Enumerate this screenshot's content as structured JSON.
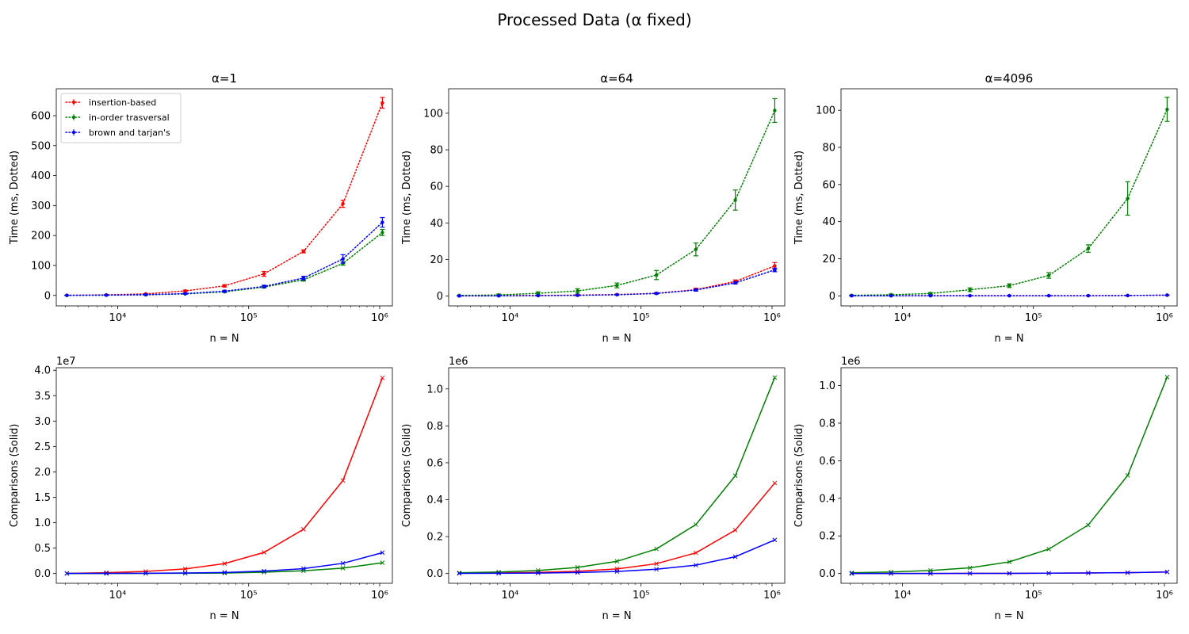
{
  "figure_title": "Processed Data (α fixed)",
  "legend": [
    "insertion-based",
    "in-order trasversal",
    "brown and tarjan's"
  ],
  "chart_data": [
    {
      "type": "line",
      "line_style": "dotted",
      "title": "α=1",
      "xlabel": "n = N",
      "ylabel": "Time (ms, Dotted)",
      "xscale": "log",
      "xlim": [
        3400,
        1250000
      ],
      "ylim": [
        -35,
        690
      ],
      "yticks": [
        0,
        100,
        200,
        300,
        400,
        500,
        600
      ],
      "ytick_labels": [
        "0",
        "100",
        "200",
        "300",
        "400",
        "500",
        "600"
      ],
      "xticks": [
        10000,
        100000,
        1000000
      ],
      "xtick_labels": [
        "10⁴",
        "10⁵",
        "10⁶"
      ],
      "offset_text": "",
      "legend_loc": "upper left",
      "x": [
        4096,
        8192,
        16384,
        32768,
        65536,
        131072,
        262144,
        524288,
        1048576
      ],
      "series": [
        {
          "name": "insertion-based",
          "color": "#ff0000",
          "values": [
            0.5,
            2,
            5,
            15,
            32,
            72,
            147,
            306,
            643
          ],
          "errors": [
            0.5,
            1,
            1.5,
            2.5,
            4,
            8,
            5,
            12,
            18
          ]
        },
        {
          "name": "in-order trasversal",
          "color": "#008000",
          "values": [
            0.3,
            0.8,
            2,
            5,
            12,
            28,
            52,
            107,
            210
          ],
          "errors": [
            0.3,
            0.5,
            0.8,
            1,
            2,
            3,
            4,
            6,
            10
          ]
        },
        {
          "name": "brown and tarjan's",
          "color": "#0000ff",
          "values": [
            0.3,
            1,
            2.5,
            6,
            14,
            30,
            58,
            122,
            244
          ],
          "errors": [
            0.3,
            0.5,
            1,
            1.5,
            3,
            4,
            6,
            14,
            16
          ]
        }
      ]
    },
    {
      "type": "line",
      "line_style": "dotted",
      "title": "α=64",
      "xlabel": "n = N",
      "ylabel": "Time (ms, Dotted)",
      "xscale": "log",
      "xlim": [
        3400,
        1250000
      ],
      "ylim": [
        -5.4,
        113.4
      ],
      "yticks": [
        0,
        20,
        40,
        60,
        80,
        100
      ],
      "ytick_labels": [
        "0",
        "20",
        "40",
        "60",
        "80",
        "100"
      ],
      "xticks": [
        10000,
        100000,
        1000000
      ],
      "xtick_labels": [
        "10⁴",
        "10⁵",
        "10⁶"
      ],
      "offset_text": "",
      "x": [
        4096,
        8192,
        16384,
        32768,
        65536,
        131072,
        262144,
        524288,
        1048576
      ],
      "series": [
        {
          "name": "insertion-based",
          "color": "#ff0000",
          "values": [
            0.1,
            0.2,
            0.3,
            0.5,
            0.8,
            1.5,
            3.5,
            8,
            16.5
          ],
          "errors": [
            0.1,
            0.1,
            0.2,
            0.3,
            0.3,
            0.4,
            0.8,
            0.8,
            1.8
          ]
        },
        {
          "name": "in-order trasversal",
          "color": "#008000",
          "values": [
            0.3,
            0.6,
            1.5,
            2.8,
            5.8,
            11.5,
            25.5,
            52.5,
            101.5
          ],
          "errors": [
            0.2,
            0.5,
            0.8,
            1.2,
            1.3,
            2.5,
            3.5,
            5.5,
            6.5
          ]
        },
        {
          "name": "brown and tarjan's",
          "color": "#0000ff",
          "values": [
            0.05,
            0.1,
            0.2,
            0.4,
            0.7,
            1.4,
            3.3,
            7.2,
            14.3
          ],
          "errors": [
            0.05,
            0.1,
            0.1,
            0.2,
            0.2,
            0.3,
            0.5,
            0.6,
            1
          ]
        }
      ]
    },
    {
      "type": "line",
      "line_style": "dotted",
      "title": "α=4096",
      "xlabel": "n = N",
      "ylabel": "Time (ms, Dotted)",
      "xscale": "log",
      "xlim": [
        3400,
        1250000
      ],
      "ylim": [
        -5.4,
        111.6
      ],
      "yticks": [
        0,
        20,
        40,
        60,
        80,
        100
      ],
      "ytick_labels": [
        "0",
        "20",
        "40",
        "60",
        "80",
        "100"
      ],
      "xticks": [
        10000,
        100000,
        1000000
      ],
      "xtick_labels": [
        "10⁴",
        "10⁵",
        "10⁶"
      ],
      "offset_text": "",
      "x": [
        4096,
        8192,
        16384,
        32768,
        65536,
        131072,
        262144,
        524288,
        1048576
      ],
      "series": [
        {
          "name": "insertion-based",
          "color": "#ff0000",
          "values": [
            0.05,
            0.05,
            0.1,
            0.1,
            0.1,
            0.1,
            0.1,
            0.2,
            0.4
          ],
          "errors": [
            0.05,
            0.05,
            0.05,
            0.05,
            0.05,
            0.05,
            0.05,
            0.05,
            0.1
          ]
        },
        {
          "name": "in-order trasversal",
          "color": "#008000",
          "values": [
            0.3,
            0.6,
            1.3,
            3.3,
            5.5,
            11,
            25.5,
            52.5,
            100.5
          ],
          "errors": [
            0.2,
            0.4,
            0.5,
            1,
            1,
            1.5,
            2,
            9,
            6.5
          ]
        },
        {
          "name": "brown and tarjan's",
          "color": "#0000ff",
          "values": [
            0.05,
            0.05,
            0.1,
            0.1,
            0.1,
            0.1,
            0.1,
            0.2,
            0.4
          ],
          "errors": [
            0.05,
            0.05,
            0.05,
            0.05,
            0.05,
            0.05,
            0.05,
            0.05,
            0.1
          ]
        }
      ]
    },
    {
      "type": "line",
      "line_style": "solid",
      "title": "",
      "xlabel": "n = N",
      "ylabel": "Comparisons (Solid)",
      "xscale": "log",
      "xlim": [
        3400,
        1250000
      ],
      "ylim": [
        -1930000,
        40500000
      ],
      "yticks": [
        0,
        5000000,
        10000000,
        15000000,
        20000000,
        25000000,
        30000000,
        35000000,
        40000000
      ],
      "ytick_labels": [
        "0.0",
        "0.5",
        "1.0",
        "1.5",
        "2.0",
        "2.5",
        "3.0",
        "3.5",
        "4.0"
      ],
      "xticks": [
        10000,
        100000,
        1000000
      ],
      "xtick_labels": [
        "10⁴",
        "10⁵",
        "10⁶"
      ],
      "offset_text": "1e7",
      "x": [
        4096,
        8192,
        16384,
        32768,
        65536,
        131072,
        262144,
        524288,
        1048576
      ],
      "series": [
        {
          "name": "insertion-based",
          "color": "#ff0000",
          "values": [
            20000,
            150000,
            400000,
            900000,
            1950000,
            4150000,
            8700000,
            18300000,
            38500000
          ]
        },
        {
          "name": "in-order trasversal",
          "color": "#008000",
          "values": [
            4000,
            8000,
            17000,
            35000,
            70000,
            260000,
            530000,
            1050000,
            2100000
          ]
        },
        {
          "name": "brown and tarjan's",
          "color": "#0000ff",
          "values": [
            10000,
            20000,
            45000,
            90000,
            200000,
            470000,
            950000,
            2000000,
            4100000
          ]
        }
      ]
    },
    {
      "type": "line",
      "line_style": "solid",
      "title": "",
      "xlabel": "n = N",
      "ylabel": "Comparisons (Solid)",
      "xscale": "log",
      "xlim": [
        3400,
        1250000
      ],
      "ylim": [
        -53000,
        1115000
      ],
      "yticks": [
        0,
        200000,
        400000,
        600000,
        800000,
        1000000
      ],
      "ytick_labels": [
        "0.0",
        "0.2",
        "0.4",
        "0.6",
        "0.8",
        "1.0"
      ],
      "xticks": [
        10000,
        100000,
        1000000
      ],
      "xtick_labels": [
        "10⁴",
        "10⁵",
        "10⁶"
      ],
      "offset_text": "1e6",
      "x": [
        4096,
        8192,
        16384,
        32768,
        65536,
        131072,
        262144,
        524288,
        1048576
      ],
      "series": [
        {
          "name": "insertion-based",
          "color": "#ff0000",
          "values": [
            1500,
            3000,
            6000,
            12000,
            25000,
            53000,
            112000,
            235000,
            490000
          ]
        },
        {
          "name": "in-order trasversal",
          "color": "#008000",
          "values": [
            4000,
            8000,
            16500,
            33000,
            66000,
            133000,
            265000,
            530000,
            1062000
          ]
        },
        {
          "name": "brown and tarjan's",
          "color": "#0000ff",
          "values": [
            500,
            1000,
            2500,
            5500,
            11000,
            23000,
            45000,
            91000,
            182000
          ]
        }
      ]
    },
    {
      "type": "line",
      "line_style": "solid",
      "title": "",
      "xlabel": "n = N",
      "ylabel": "Comparisons (Solid)",
      "xscale": "log",
      "xlim": [
        3400,
        1250000
      ],
      "ylim": [
        -52000,
        1095000
      ],
      "yticks": [
        0,
        200000,
        400000,
        600000,
        800000,
        1000000
      ],
      "ytick_labels": [
        "0.0",
        "0.2",
        "0.4",
        "0.6",
        "0.8",
        "1.0"
      ],
      "xticks": [
        10000,
        100000,
        1000000
      ],
      "xtick_labels": [
        "10⁴",
        "10⁵",
        "10⁶"
      ],
      "offset_text": "1e6",
      "x": [
        4096,
        8192,
        16384,
        32768,
        65536,
        131072,
        262144,
        524288,
        1048576
      ],
      "series": [
        {
          "name": "insertion-based",
          "color": "#ff0000",
          "values": [
            100,
            150,
            300,
            500,
            800,
            1500,
            3000,
            4500,
            8000
          ]
        },
        {
          "name": "in-order trasversal",
          "color": "#008000",
          "values": [
            4000,
            8000,
            16000,
            30000,
            62000,
            130000,
            258000,
            522000,
            1045000
          ]
        },
        {
          "name": "brown and tarjan's",
          "color": "#0000ff",
          "values": [
            100,
            150,
            300,
            500,
            800,
            1500,
            3000,
            4500,
            8000
          ]
        }
      ]
    }
  ]
}
